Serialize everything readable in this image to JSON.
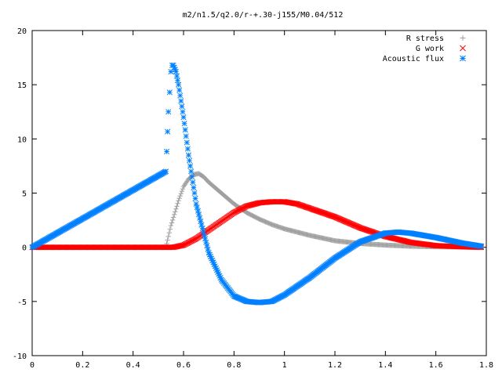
{
  "chart_data": {
    "type": "scatter",
    "title": "m2/n1.5/q2.0/r-+.30-j155/M0.04/512",
    "xlabel": "",
    "ylabel": "",
    "xlim": [
      0,
      1.8
    ],
    "ylim": [
      -10,
      20
    ],
    "x_ticks": [
      "0",
      "0.2",
      "0.4",
      "0.6",
      "0.8",
      "1",
      "1.2",
      "1.4",
      "1.6",
      "1.8"
    ],
    "y_ticks": [
      "-10",
      "-5",
      "0",
      "5",
      "10",
      "15",
      "20"
    ],
    "grid": false,
    "legend_position": "top-right",
    "series": [
      {
        "name": "R stress",
        "marker": "plus",
        "color": "#a0a0a0",
        "x": [
          0,
          0.53,
          0.55,
          0.58,
          0.6,
          0.62,
          0.64,
          0.66,
          0.68,
          0.7,
          0.75,
          0.8,
          0.85,
          0.9,
          0.95,
          1.0,
          1.1,
          1.2,
          1.3,
          1.4,
          1.5,
          1.6,
          1.78
        ],
        "y": [
          0,
          0,
          2.0,
          4.3,
          5.6,
          6.3,
          6.7,
          6.8,
          6.5,
          6.0,
          5.0,
          4.0,
          3.2,
          2.6,
          2.1,
          1.7,
          1.1,
          0.6,
          0.35,
          0.2,
          0.1,
          0.05,
          0
        ]
      },
      {
        "name": "G work",
        "marker": "cross",
        "color": "#ff0000",
        "x": [
          0,
          0.53,
          0.56,
          0.6,
          0.65,
          0.7,
          0.75,
          0.8,
          0.85,
          0.9,
          0.95,
          1.0,
          1.05,
          1.1,
          1.2,
          1.3,
          1.4,
          1.5,
          1.6,
          1.7,
          1.78
        ],
        "y": [
          0,
          0,
          0,
          0.2,
          0.8,
          1.6,
          2.4,
          3.2,
          3.8,
          4.1,
          4.2,
          4.2,
          4.0,
          3.6,
          2.8,
          1.8,
          1.0,
          0.45,
          0.15,
          0.05,
          0
        ]
      },
      {
        "name": "Acoustic flux",
        "marker": "star",
        "color": "#0080ff",
        "x": [
          0,
          0.53,
          0.54,
          0.545,
          0.55,
          0.555,
          0.56,
          0.57,
          0.58,
          0.6,
          0.62,
          0.65,
          0.7,
          0.75,
          0.8,
          0.85,
          0.9,
          0.95,
          1.0,
          1.1,
          1.2,
          1.3,
          1.4,
          1.45,
          1.5,
          1.6,
          1.7,
          1.78
        ],
        "y": [
          0,
          7.0,
          12.5,
          14.3,
          16.2,
          16.8,
          16.8,
          16.2,
          15.0,
          12.0,
          8.5,
          4.0,
          -0.5,
          -3.0,
          -4.5,
          -5.0,
          -5.1,
          -5.0,
          -4.4,
          -2.8,
          -1.0,
          0.5,
          1.3,
          1.4,
          1.3,
          0.9,
          0.4,
          0.1
        ]
      }
    ]
  }
}
